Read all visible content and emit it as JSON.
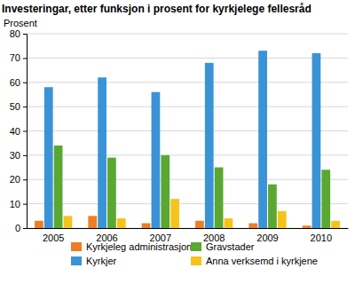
{
  "chart_data": {
    "type": "bar",
    "title": "Investeringar, etter funksjon i prosent for kyrkjelege fellesråd",
    "y_label": "Prosent",
    "categories": [
      "2005",
      "2006",
      "2007",
      "2008",
      "2009",
      "2010"
    ],
    "series": [
      {
        "name": "Kyrkjeleg administrasjon",
        "color": "#f07d23",
        "values": [
          3,
          5,
          2,
          3,
          2,
          1
        ]
      },
      {
        "name": "Kyrkjer",
        "color": "#3a93d6",
        "values": [
          58,
          62,
          56,
          68,
          73,
          72
        ]
      },
      {
        "name": "Gravstader",
        "color": "#5aa832",
        "values": [
          34,
          29,
          30,
          25,
          18,
          24
        ]
      },
      {
        "name": "Anna verksemd i kyrkjene",
        "color": "#f6c31c",
        "values": [
          5,
          4,
          12,
          4,
          7,
          3
        ]
      }
    ],
    "ylim": [
      0,
      80
    ],
    "yticks": [
      0,
      10,
      20,
      30,
      40,
      50,
      60,
      70,
      80
    ],
    "grid": true,
    "legend": "bottom"
  }
}
